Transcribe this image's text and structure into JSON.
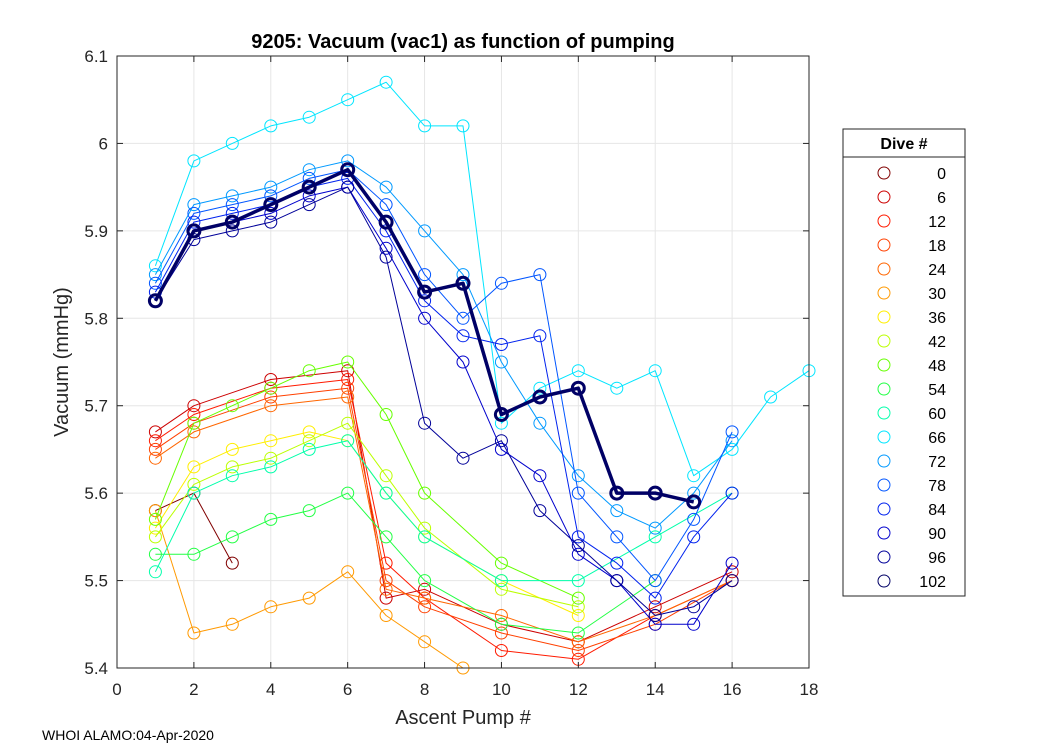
{
  "chart_data": {
    "type": "line",
    "title": "9205: Vacuum (vac1) as function of pumping",
    "xlabel": "Ascent Pump #",
    "ylabel": "Vacuum (mmHg)",
    "xlim": [
      0,
      18
    ],
    "ylim": [
      5.4,
      6.1
    ],
    "xticks": [
      0,
      2,
      4,
      6,
      8,
      10,
      12,
      14,
      16,
      18
    ],
    "yticks": [
      5.4,
      5.5,
      5.6,
      5.7,
      5.8,
      5.9,
      6,
      6.1
    ],
    "ytick_labels": [
      "5.4",
      "5.5",
      "5.6",
      "5.7",
      "5.8",
      "5.9",
      "6",
      "6.1"
    ],
    "grid": true,
    "marker": "open-circle",
    "legend": {
      "title": "Dive #",
      "location": "outside-right",
      "entries": [
        {
          "label": "0",
          "color": "#800000"
        },
        {
          "label": "6",
          "color": "#cc0000"
        },
        {
          "label": "12",
          "color": "#ff1a00"
        },
        {
          "label": "18",
          "color": "#ff4000"
        },
        {
          "label": "24",
          "color": "#ff6600"
        },
        {
          "label": "30",
          "color": "#ff9900"
        },
        {
          "label": "36",
          "color": "#ffee00"
        },
        {
          "label": "42",
          "color": "#bbff00"
        },
        {
          "label": "48",
          "color": "#66ff00"
        },
        {
          "label": "54",
          "color": "#22ff44"
        },
        {
          "label": "60",
          "color": "#00ffaa"
        },
        {
          "label": "66",
          "color": "#00e5ff"
        },
        {
          "label": "72",
          "color": "#0099ff"
        },
        {
          "label": "78",
          "color": "#0055ff"
        },
        {
          "label": "84",
          "color": "#0022ee"
        },
        {
          "label": "90",
          "color": "#0000cc"
        },
        {
          "label": "96",
          "color": "#000099"
        },
        {
          "label": "102",
          "color": "#000066"
        }
      ]
    },
    "series": [
      {
        "name": "0",
        "color": "#800000",
        "x": [
          1,
          2,
          3
        ],
        "y": [
          5.58,
          5.6,
          5.52
        ]
      },
      {
        "name": "6",
        "color": "#cc0000",
        "x": [
          1,
          2,
          4,
          6,
          7,
          8,
          10,
          12,
          14,
          16
        ],
        "y": [
          5.67,
          5.7,
          5.73,
          5.74,
          5.48,
          5.49,
          5.45,
          5.43,
          5.47,
          5.51
        ]
      },
      {
        "name": "12",
        "color": "#ff1a00",
        "x": [
          1,
          2,
          4,
          6,
          7,
          8,
          10,
          12,
          14,
          16
        ],
        "y": [
          5.66,
          5.69,
          5.72,
          5.73,
          5.52,
          5.48,
          5.42,
          5.41,
          5.46,
          5.5
        ]
      },
      {
        "name": "18",
        "color": "#ff4000",
        "x": [
          1,
          2,
          4,
          6,
          7,
          8,
          10,
          12,
          14,
          16
        ],
        "y": [
          5.65,
          5.68,
          5.71,
          5.72,
          5.5,
          5.47,
          5.44,
          5.42,
          5.45,
          5.5
        ]
      },
      {
        "name": "24",
        "color": "#ff6600",
        "x": [
          1,
          2,
          4,
          6,
          7,
          8,
          10,
          12,
          14,
          16
        ],
        "y": [
          5.64,
          5.67,
          5.7,
          5.71,
          5.49,
          5.48,
          5.46,
          5.43,
          5.46,
          5.5
        ]
      },
      {
        "name": "30",
        "color": "#ff9900",
        "x": [
          1,
          2,
          3,
          4,
          5,
          6,
          7,
          8,
          9
        ],
        "y": [
          5.58,
          5.44,
          5.45,
          5.47,
          5.48,
          5.51,
          5.46,
          5.43,
          5.4
        ]
      },
      {
        "name": "36",
        "color": "#ffee00",
        "x": [
          1,
          2,
          3,
          4,
          5,
          6,
          7,
          8,
          10,
          12
        ],
        "y": [
          5.56,
          5.63,
          5.65,
          5.66,
          5.67,
          5.66,
          5.6,
          5.55,
          5.5,
          5.46
        ]
      },
      {
        "name": "42",
        "color": "#bbff00",
        "x": [
          1,
          2,
          3,
          4,
          5,
          6,
          7,
          8,
          10,
          12
        ],
        "y": [
          5.55,
          5.61,
          5.63,
          5.64,
          5.66,
          5.68,
          5.62,
          5.56,
          5.49,
          5.47
        ]
      },
      {
        "name": "48",
        "color": "#66ff00",
        "x": [
          1,
          2,
          3,
          4,
          5,
          6,
          7,
          8,
          10,
          12
        ],
        "y": [
          5.57,
          5.68,
          5.7,
          5.72,
          5.74,
          5.75,
          5.69,
          5.6,
          5.52,
          5.48
        ]
      },
      {
        "name": "54",
        "color": "#22ff44",
        "x": [
          1,
          2,
          3,
          4,
          5,
          6,
          7,
          8,
          10,
          12,
          14
        ],
        "y": [
          5.53,
          5.53,
          5.55,
          5.57,
          5.58,
          5.6,
          5.55,
          5.5,
          5.45,
          5.44,
          5.5
        ]
      },
      {
        "name": "60",
        "color": "#00ffaa",
        "x": [
          1,
          2,
          3,
          4,
          5,
          6,
          7,
          8,
          10,
          12,
          14,
          16
        ],
        "y": [
          5.51,
          5.6,
          5.62,
          5.63,
          5.65,
          5.66,
          5.6,
          5.55,
          5.5,
          5.5,
          5.55,
          5.6
        ]
      },
      {
        "name": "66",
        "color": "#00e5ff",
        "x": [
          1,
          2,
          3,
          4,
          5,
          6,
          7,
          8,
          9,
          10,
          11,
          12,
          13,
          14,
          15,
          16,
          17,
          18
        ],
        "y": [
          5.86,
          5.98,
          6.0,
          6.02,
          6.03,
          6.05,
          6.07,
          6.02,
          6.02,
          5.68,
          5.72,
          5.74,
          5.72,
          5.74,
          5.62,
          5.65,
          5.71,
          5.74
        ]
      },
      {
        "name": "72",
        "color": "#0099ff",
        "x": [
          1,
          2,
          3,
          4,
          5,
          6,
          7,
          8,
          9,
          10,
          11,
          12,
          13,
          14,
          15,
          16
        ],
        "y": [
          5.85,
          5.93,
          5.94,
          5.95,
          5.97,
          5.98,
          5.95,
          5.9,
          5.85,
          5.75,
          5.68,
          5.62,
          5.58,
          5.56,
          5.6,
          5.66
        ]
      },
      {
        "name": "78",
        "color": "#0055ff",
        "x": [
          1,
          2,
          3,
          4,
          5,
          6,
          7,
          8,
          9,
          10,
          11,
          12,
          13,
          14,
          15,
          16
        ],
        "y": [
          5.84,
          5.92,
          5.93,
          5.94,
          5.96,
          5.97,
          5.93,
          5.85,
          5.8,
          5.84,
          5.85,
          5.6,
          5.55,
          5.5,
          5.57,
          5.67
        ]
      },
      {
        "name": "84",
        "color": "#0022ee",
        "x": [
          1,
          2,
          3,
          4,
          5,
          6,
          7,
          8,
          9,
          10,
          11,
          12,
          13,
          14,
          15,
          16
        ],
        "y": [
          5.83,
          5.91,
          5.92,
          5.93,
          5.95,
          5.96,
          5.9,
          5.82,
          5.78,
          5.77,
          5.78,
          5.55,
          5.52,
          5.48,
          5.55,
          5.6
        ]
      },
      {
        "name": "90",
        "color": "#0000cc",
        "x": [
          1,
          2,
          3,
          4,
          5,
          6,
          7,
          8,
          9,
          10,
          11,
          12,
          13,
          14,
          15,
          16
        ],
        "y": [
          5.82,
          5.9,
          5.91,
          5.92,
          5.94,
          5.95,
          5.88,
          5.8,
          5.75,
          5.65,
          5.62,
          5.53,
          5.5,
          5.45,
          5.45,
          5.52
        ]
      },
      {
        "name": "96",
        "color": "#000099",
        "x": [
          1,
          2,
          3,
          4,
          5,
          6,
          7,
          8,
          9,
          10,
          11,
          12,
          13,
          14,
          15,
          16
        ],
        "y": [
          5.82,
          5.89,
          5.9,
          5.91,
          5.93,
          5.95,
          5.87,
          5.68,
          5.64,
          5.66,
          5.58,
          5.54,
          5.5,
          5.46,
          5.47,
          5.5
        ]
      },
      {
        "name": "102",
        "color": "#000066",
        "bold": true,
        "x": [
          1,
          2,
          3,
          4,
          5,
          6,
          7,
          8,
          9,
          10,
          11,
          12,
          13,
          14,
          15
        ],
        "y": [
          5.82,
          5.9,
          5.91,
          5.93,
          5.95,
          5.97,
          5.91,
          5.83,
          5.84,
          5.69,
          5.71,
          5.72,
          5.6,
          5.6,
          5.59
        ]
      }
    ]
  },
  "footer": {
    "text": "WHOI ALAMO:04-Apr-2020"
  }
}
